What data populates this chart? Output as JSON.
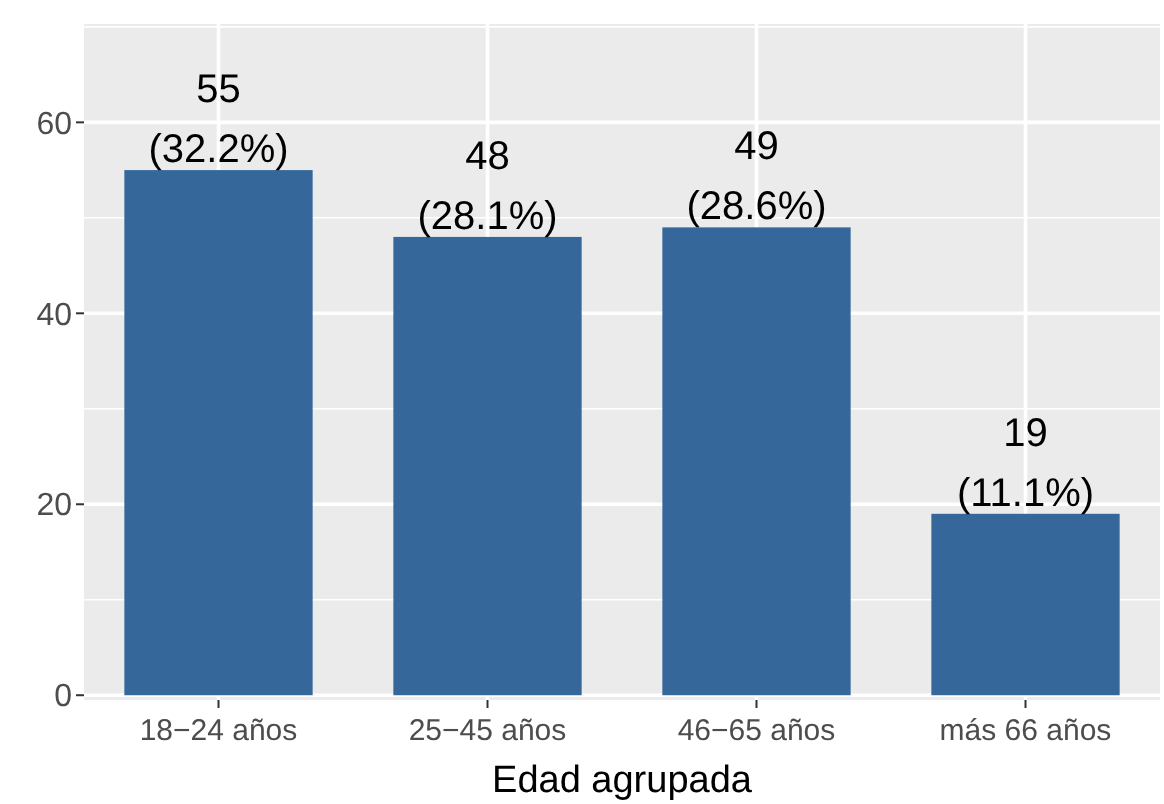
{
  "chart_data": {
    "type": "bar",
    "xlabel": "Edad agrupada",
    "categories": [
      "18−24 años",
      "25−45 años",
      "46−65 años",
      "más 66 años"
    ],
    "values": [
      55,
      48,
      49,
      19
    ],
    "value_labels": [
      "55\n(32.2%)",
      "48\n(28.1%)",
      "49\n(28.6%)",
      "19\n(11.1%)"
    ],
    "color": "#35679a",
    "ylim": [
      -0.5,
      70.3
    ],
    "yticks": [
      0,
      20,
      40,
      60
    ],
    "grid": true
  }
}
